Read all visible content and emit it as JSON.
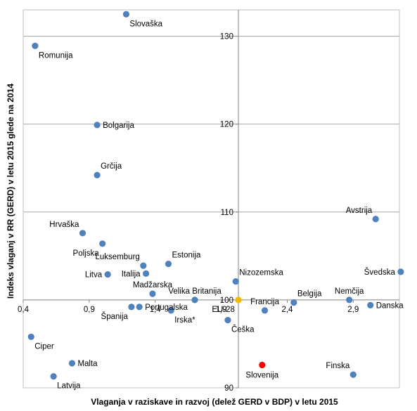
{
  "chart_data": {
    "type": "scatter",
    "xlabel": "Vlaganja v raziskave in razvoj (delež GERD v BDP) v letu 2015",
    "ylabel": "Indeks vlaganj v RR (GERD) v letu 2015 glede na 2014",
    "xlim": [
      0.4,
      3.25
    ],
    "ylim": [
      90,
      133
    ],
    "x_ticks": [
      {
        "value": 0.4,
        "label": "0,4"
      },
      {
        "value": 0.9,
        "label": "0,9"
      },
      {
        "value": 1.4,
        "label": "1,4"
      },
      {
        "value": 1.9,
        "label": "1,9"
      },
      {
        "value": 2.4,
        "label": "2,4"
      },
      {
        "value": 2.9,
        "label": "2,9"
      }
    ],
    "y_ticks": [
      {
        "value": 90,
        "label": "90"
      },
      {
        "value": 100,
        "label": "100"
      },
      {
        "value": 110,
        "label": "110"
      },
      {
        "value": 120,
        "label": "120"
      },
      {
        "value": 130,
        "label": "130"
      }
    ],
    "crosshair": {
      "x": 2.03,
      "y": 100
    },
    "grid": "horizontal",
    "colors": {
      "default": "#4f81bd",
      "eu": "#f5b800",
      "slovenia": "#ff0000",
      "grid": "#a6a6a6",
      "axis": "#808080"
    },
    "points": [
      {
        "name": "Slovaška",
        "x": 1.18,
        "y": 132.5,
        "label": "Slovaška",
        "label_pos": "below-right"
      },
      {
        "name": "Romunija",
        "x": 0.49,
        "y": 128.9,
        "label": "Romunija",
        "label_pos": "below-right"
      },
      {
        "name": "Bolgarija",
        "x": 0.96,
        "y": 119.9,
        "label": "Bolgarija",
        "label_pos": "right"
      },
      {
        "name": "Grčija",
        "x": 0.96,
        "y": 114.2,
        "label": "Grčija",
        "label_pos": "above-right"
      },
      {
        "name": "Avstrija",
        "x": 3.07,
        "y": 109.2,
        "label": "Avstrija",
        "label_pos": "above-left"
      },
      {
        "name": "Hrvaška",
        "x": 0.85,
        "y": 107.6,
        "label": "Hrvaška",
        "label_pos": "above-left"
      },
      {
        "name": "Poljska",
        "x": 1.0,
        "y": 106.4,
        "label": "Poljska",
        "label_pos": "below-left"
      },
      {
        "name": "Luksemburg",
        "x": 1.31,
        "y": 103.9,
        "label": "Luksemburg",
        "label_pos": "above-left"
      },
      {
        "name": "Estonija",
        "x": 1.5,
        "y": 104.1,
        "label": "Estonija",
        "label_pos": "above-right"
      },
      {
        "name": "Litva",
        "x": 1.04,
        "y": 102.9,
        "label": "Litva",
        "label_pos": "left"
      },
      {
        "name": "Italija",
        "x": 1.33,
        "y": 103.0,
        "label": "Italija",
        "label_pos": "left"
      },
      {
        "name": "Švedska",
        "x": 3.26,
        "y": 103.2,
        "label": "Švedska",
        "label_pos": "left"
      },
      {
        "name": "Nizozemska",
        "x": 2.01,
        "y": 102.1,
        "label": "Nizozemska",
        "label_pos": "above-right"
      },
      {
        "name": "Madžarska",
        "x": 1.38,
        "y": 100.7,
        "label": "Madžarska",
        "label_pos": "above"
      },
      {
        "name": "Velika Britanija",
        "x": 1.7,
        "y": 100.0,
        "label": "Velika Britanija",
        "label_pos": "above"
      },
      {
        "name": "Španija",
        "x": 1.22,
        "y": 99.2,
        "label": "Španija",
        "label_pos": "below-left"
      },
      {
        "name": "Portugalska",
        "x": 1.28,
        "y": 99.2,
        "label": "Portugalska",
        "label_pos": "right"
      },
      {
        "name": "Irska*",
        "x": 1.52,
        "y": 98.8,
        "label": "Irska*",
        "label_pos": "below-right"
      },
      {
        "name": "EU-28",
        "x": 2.03,
        "y": 100.0,
        "label": "EU-28",
        "label_pos": "below-left",
        "highlight": "eu"
      },
      {
        "name": "Francija",
        "x": 2.23,
        "y": 98.8,
        "label": "Francija",
        "label_pos": "above"
      },
      {
        "name": "Belgija",
        "x": 2.45,
        "y": 99.7,
        "label": "Belgija",
        "label_pos": "above-right"
      },
      {
        "name": "Nemčija",
        "x": 2.87,
        "y": 100.0,
        "label": "Nemčija",
        "label_pos": "above"
      },
      {
        "name": "Danska",
        "x": 3.03,
        "y": 99.4,
        "label": "Danska",
        "label_pos": "right"
      },
      {
        "name": "Češka",
        "x": 1.95,
        "y": 97.7,
        "label": "Češka",
        "label_pos": "below-right"
      },
      {
        "name": "Ciper",
        "x": 0.46,
        "y": 95.8,
        "label": "Ciper",
        "label_pos": "below-right"
      },
      {
        "name": "Malta",
        "x": 0.77,
        "y": 92.8,
        "label": "Malta",
        "label_pos": "right"
      },
      {
        "name": "Latvija",
        "x": 0.63,
        "y": 91.3,
        "label": "Latvija",
        "label_pos": "below-right"
      },
      {
        "name": "Slovenija",
        "x": 2.21,
        "y": 92.6,
        "label": "Slovenija",
        "label_pos": "below",
        "highlight": "slovenia"
      },
      {
        "name": "Finska",
        "x": 2.9,
        "y": 91.5,
        "label": "Finska",
        "label_pos": "above-left"
      }
    ]
  }
}
